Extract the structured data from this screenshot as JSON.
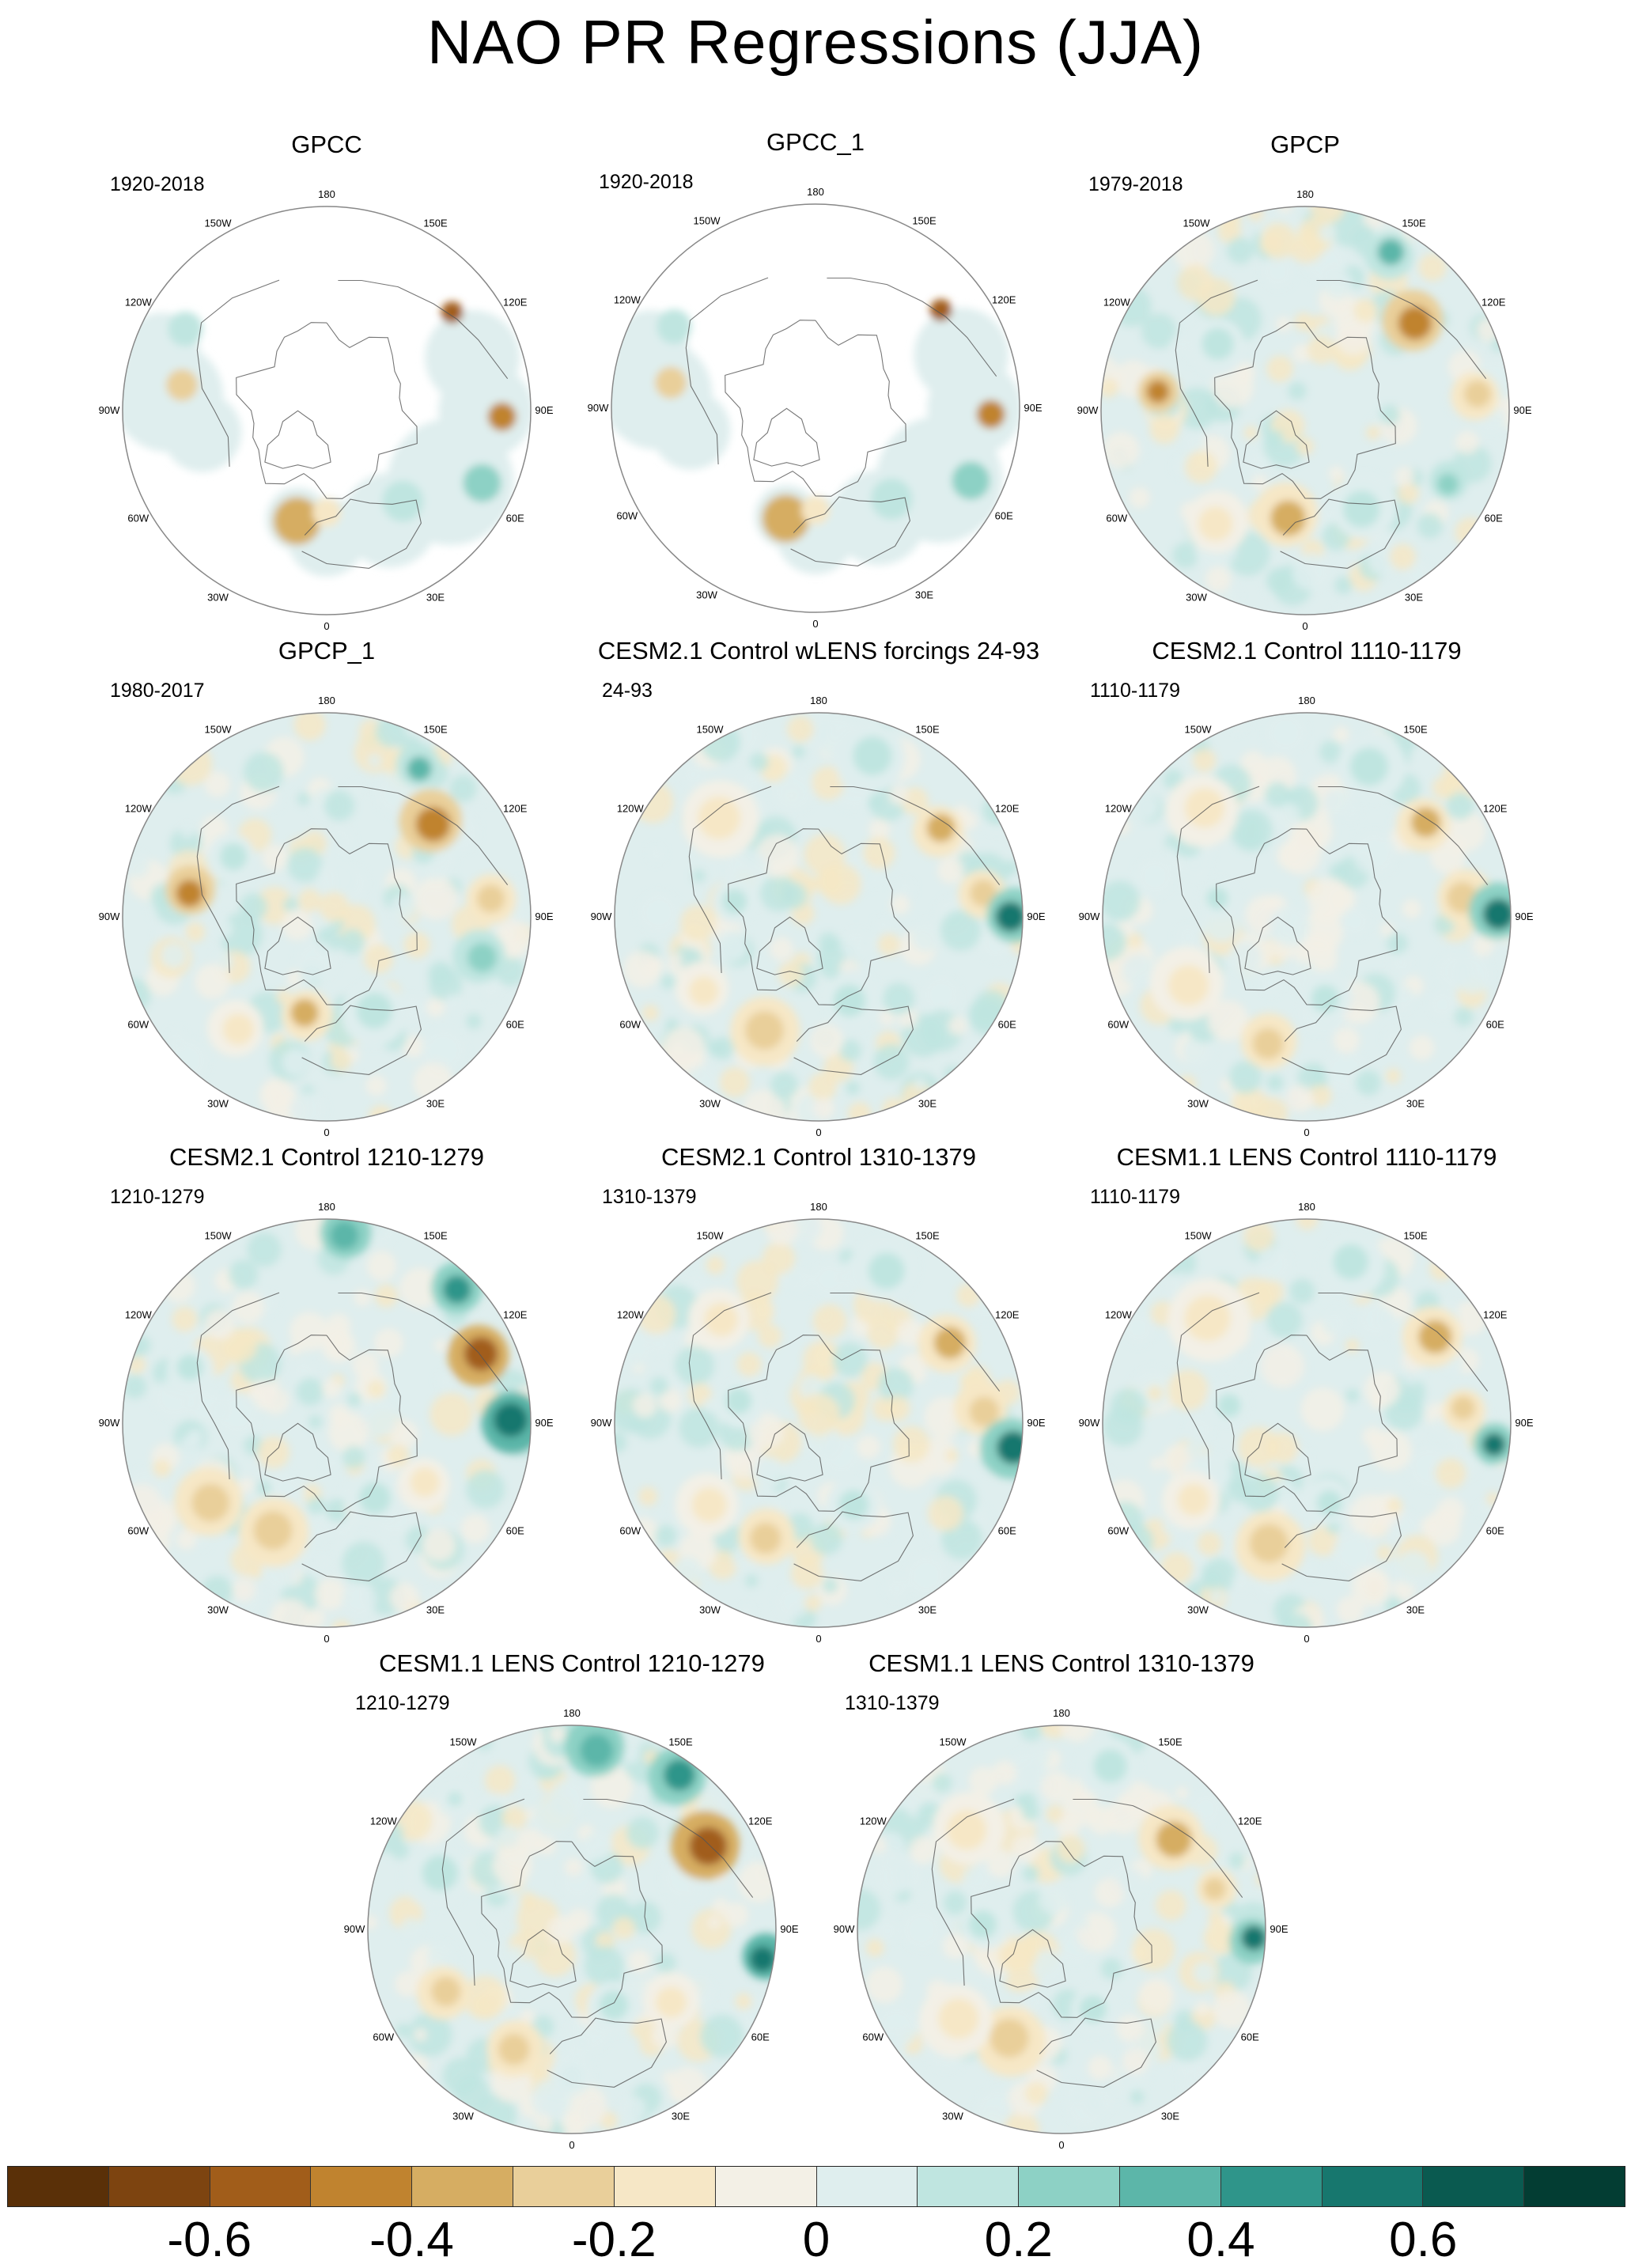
{
  "title": "NAO PR Regressions (JJA)",
  "panels": [
    {
      "title": "GPCC",
      "period": "1920-2018",
      "style": "obs_sparse"
    },
    {
      "title": "GPCC_1",
      "period": "1920-2018",
      "style": "obs_sparse"
    },
    {
      "title": "GPCP",
      "period": "1979-2018",
      "style": "obs_full"
    },
    {
      "title": "GPCP_1",
      "period": "1980-2017",
      "style": "obs_full"
    },
    {
      "title": "CESM2.1 Control wLENS forcings 24-93",
      "period": "24-93",
      "style": "model"
    },
    {
      "title": "CESM2.1 Control 1110-1179",
      "period": "1110-1179",
      "style": "model"
    },
    {
      "title": "CESM2.1 Control 1210-1279",
      "period": "1210-1279",
      "style": "model_strong"
    },
    {
      "title": "CESM2.1 Control 1310-1379",
      "period": "1310-1379",
      "style": "model"
    },
    {
      "title": "CESM1.1 LENS Control 1110-1179",
      "period": "1110-1179",
      "style": "model"
    },
    {
      "title": "CESM1.1 LENS Control 1210-1279",
      "period": "1210-1279",
      "style": "model_strong"
    },
    {
      "title": "CESM1.1 LENS Control 1310-1379",
      "period": "1310-1379",
      "style": "model"
    }
  ],
  "longitude_labels": [
    "180",
    "150E",
    "120E",
    "90E",
    "60E",
    "30E",
    "0",
    "30W",
    "60W",
    "90W",
    "120W",
    "150W"
  ],
  "colorbar": {
    "colors": [
      "#5a3008",
      "#7d4410",
      "#a15d1a",
      "#c0832f",
      "#d6ad62",
      "#e9cf9a",
      "#f6e7c6",
      "#f3f0e6",
      "#dfeeee",
      "#bfe5e0",
      "#8dd1c5",
      "#5cb6a9",
      "#2f958a",
      "#17776e",
      "#0a5a50",
      "#033d33"
    ],
    "tick_labels": [
      "-0.6",
      "-0.4",
      "-0.2",
      "0",
      "0.2",
      "0.4",
      "0.6"
    ],
    "tick_values": [
      -0.6,
      -0.4,
      -0.2,
      0,
      0.2,
      0.4,
      0.6
    ],
    "min": -0.8,
    "max": 0.8
  }
}
